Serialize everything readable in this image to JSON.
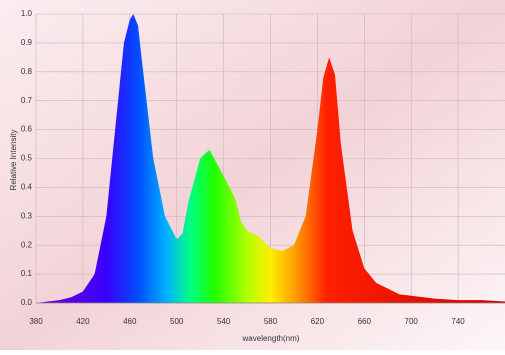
{
  "chart_data": {
    "type": "area",
    "x": [
      380,
      390,
      400,
      410,
      420,
      430,
      440,
      450,
      455,
      460,
      463,
      467,
      470,
      480,
      490,
      500,
      505,
      510,
      520,
      525,
      528,
      532,
      540,
      550,
      555,
      560,
      570,
      580,
      590,
      600,
      610,
      620,
      625,
      630,
      635,
      640,
      650,
      660,
      670,
      680,
      690,
      700,
      720,
      740,
      760,
      780
    ],
    "values": [
      0,
      0.005,
      0.01,
      0.02,
      0.04,
      0.1,
      0.3,
      0.7,
      0.9,
      0.98,
      1.0,
      0.96,
      0.85,
      0.5,
      0.3,
      0.22,
      0.24,
      0.35,
      0.5,
      0.52,
      0.53,
      0.5,
      0.44,
      0.36,
      0.28,
      0.25,
      0.23,
      0.19,
      0.18,
      0.2,
      0.3,
      0.6,
      0.78,
      0.85,
      0.79,
      0.55,
      0.25,
      0.12,
      0.07,
      0.05,
      0.03,
      0.025,
      0.015,
      0.01,
      0.01,
      0.005
    ],
    "xlabel": "wavelength(nm)",
    "ylabel": "Relative Intensity",
    "xlim": [
      380,
      780
    ],
    "ylim": [
      0,
      1
    ],
    "xticks": [
      380,
      420,
      460,
      500,
      540,
      580,
      620,
      660,
      700,
      740
    ],
    "yticks": [
      {
        "value": 0,
        "label": "0.0"
      },
      0.1,
      0.2,
      0.3,
      0.4,
      0.5,
      0.6,
      0.7,
      0.8,
      0.9,
      {
        "value": 1,
        "label": "1.0"
      }
    ],
    "grid": true
  }
}
